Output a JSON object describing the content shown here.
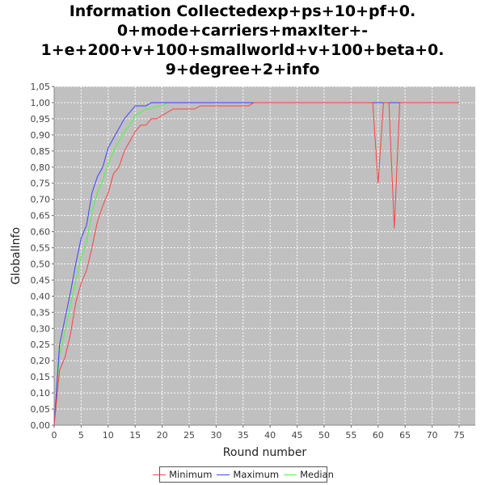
{
  "chart_data": {
    "type": "line",
    "title_lines": [
      "Information Collectedexp+ps+10+pf+0.",
      "0+mode+carriers+maxIter+-",
      "1+e+200+v+100+smallworld+v+100+beta+0.",
      "9+degree+2+info"
    ],
    "xlabel": "Round number",
    "ylabel": "GlobalInfo",
    "xlim": [
      0,
      78
    ],
    "ylim": [
      0,
      1.05
    ],
    "x_ticks": [
      0,
      5,
      10,
      15,
      20,
      25,
      30,
      35,
      40,
      45,
      50,
      55,
      60,
      65,
      70,
      75
    ],
    "y_ticks": [
      "0,00",
      "0,05",
      "0,10",
      "0,15",
      "0,20",
      "0,25",
      "0,30",
      "0,35",
      "0,40",
      "0,45",
      "0,50",
      "0,55",
      "0,60",
      "0,65",
      "0,70",
      "0,75",
      "0,80",
      "0,85",
      "0,90",
      "0,95",
      "1,00",
      "1,05"
    ],
    "grid": true,
    "legend_position": "bottom",
    "background_color": "#c0c0c0",
    "series": [
      {
        "name": "Minimum",
        "color": "#ff4040",
        "x": [
          0,
          1,
          2,
          3,
          4,
          5,
          6,
          7,
          8,
          9,
          10,
          11,
          12,
          13,
          14,
          15,
          16,
          17,
          18,
          19,
          20,
          21,
          22,
          23,
          24,
          25,
          26,
          27,
          28,
          29,
          30,
          31,
          32,
          33,
          34,
          35,
          36,
          37,
          38,
          40,
          45,
          50,
          55,
          58,
          59,
          60,
          61,
          62,
          63,
          64,
          65,
          70,
          75
        ],
        "y": [
          0.0,
          0.17,
          0.21,
          0.28,
          0.38,
          0.44,
          0.48,
          0.55,
          0.63,
          0.68,
          0.72,
          0.78,
          0.8,
          0.85,
          0.88,
          0.91,
          0.93,
          0.93,
          0.95,
          0.95,
          0.96,
          0.97,
          0.98,
          0.98,
          0.98,
          0.98,
          0.98,
          0.99,
          0.99,
          0.99,
          0.99,
          0.99,
          0.99,
          0.99,
          0.99,
          0.99,
          0.99,
          1.0,
          1.0,
          1.0,
          1.0,
          1.0,
          1.0,
          1.0,
          1.0,
          0.75,
          1.0,
          1.0,
          0.61,
          1.0,
          1.0,
          1.0,
          1.0
        ]
      },
      {
        "name": "Maximum",
        "color": "#4040ff",
        "x": [
          0,
          1,
          2,
          3,
          4,
          5,
          6,
          7,
          8,
          9,
          10,
          11,
          12,
          13,
          14,
          15,
          16,
          17,
          18,
          19,
          20,
          21,
          22,
          25,
          30,
          35,
          37,
          40,
          45,
          50,
          55,
          60,
          61,
          62,
          63,
          64,
          65,
          70,
          75
        ],
        "y": [
          0.0,
          0.25,
          0.33,
          0.41,
          0.5,
          0.58,
          0.62,
          0.72,
          0.77,
          0.8,
          0.86,
          0.89,
          0.92,
          0.95,
          0.97,
          0.99,
          0.99,
          0.99,
          1.0,
          1.0,
          1.0,
          1.0,
          1.0,
          1.0,
          1.0,
          1.0,
          1.0,
          1.0,
          1.0,
          1.0,
          1.0,
          1.0,
          1.0,
          1.0,
          1.0,
          1.0,
          1.0,
          1.0,
          1.0
        ]
      },
      {
        "name": "Median",
        "color": "#40ff40",
        "x": [
          0,
          1,
          2,
          3,
          4,
          5,
          6,
          7,
          8,
          9,
          10,
          11,
          12,
          13,
          14,
          15,
          16,
          17,
          18,
          19,
          20,
          21,
          22,
          25,
          30,
          35,
          40,
          45,
          50,
          55,
          60,
          65,
          70,
          75
        ],
        "y": [
          0.0,
          0.22,
          0.29,
          0.37,
          0.45,
          0.52,
          0.57,
          0.66,
          0.72,
          0.76,
          0.81,
          0.85,
          0.88,
          0.91,
          0.93,
          0.96,
          0.97,
          0.98,
          0.98,
          0.99,
          0.99,
          1.0,
          1.0,
          1.0,
          1.0,
          1.0,
          1.0,
          1.0,
          1.0,
          1.0,
          1.0,
          1.0,
          1.0,
          1.0
        ]
      }
    ]
  }
}
